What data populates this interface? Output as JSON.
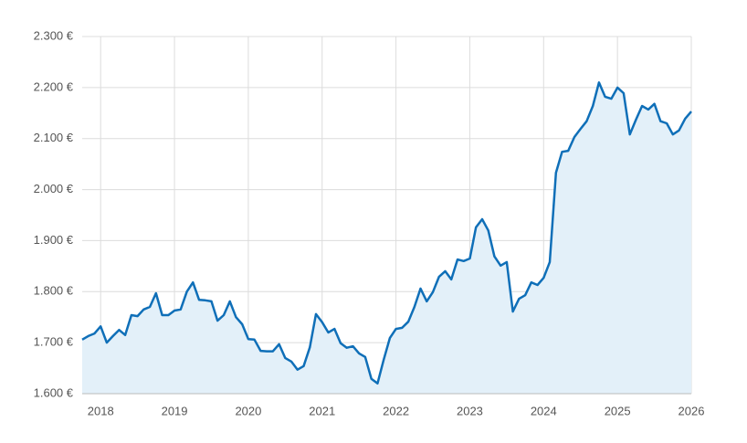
{
  "chart_data": {
    "type": "area",
    "x": [
      2017.75,
      2017.833,
      2017.917,
      2018,
      2018.083,
      2018.167,
      2018.25,
      2018.333,
      2018.417,
      2018.5,
      2018.583,
      2018.667,
      2018.75,
      2018.833,
      2018.917,
      2019,
      2019.083,
      2019.167,
      2019.25,
      2019.333,
      2019.417,
      2019.5,
      2019.583,
      2019.667,
      2019.75,
      2019.833,
      2019.917,
      2020,
      2020.083,
      2020.167,
      2020.25,
      2020.333,
      2020.417,
      2020.5,
      2020.583,
      2020.667,
      2020.75,
      2020.833,
      2020.917,
      2021,
      2021.083,
      2021.167,
      2021.25,
      2021.333,
      2021.417,
      2021.5,
      2021.583,
      2021.667,
      2021.75,
      2021.833,
      2021.917,
      2022,
      2022.083,
      2022.167,
      2022.25,
      2022.333,
      2022.417,
      2022.5,
      2022.583,
      2022.667,
      2022.75,
      2022.833,
      2022.917,
      2023,
      2023.083,
      2023.167,
      2023.25,
      2023.333,
      2023.417,
      2023.5,
      2023.583,
      2023.667,
      2023.75,
      2023.833,
      2023.917,
      2024,
      2024.083,
      2024.167,
      2024.25,
      2024.333,
      2024.417,
      2024.5,
      2024.583,
      2024.667,
      2024.75,
      2024.833,
      2024.917,
      2025,
      2025.083,
      2025.167,
      2025.25,
      2025.333,
      2025.417,
      2025.5,
      2025.583,
      2025.667,
      2025.75,
      2025.833,
      2025.917,
      2026
    ],
    "series": [
      {
        "color": "#0f6fb8",
        "values": [
          1706,
          1713,
          1718,
          1732,
          1700,
          1713,
          1725,
          1715,
          1754,
          1752,
          1765,
          1770,
          1797,
          1754,
          1754,
          1763,
          1765,
          1800,
          1818,
          1784,
          1783,
          1781,
          1743,
          1754,
          1781,
          1750,
          1736,
          1707,
          1706,
          1684,
          1683,
          1683,
          1697,
          1670,
          1663,
          1647,
          1654,
          1691,
          1756,
          1740,
          1720,
          1727,
          1699,
          1690,
          1693,
          1679,
          1672,
          1629,
          1620,
          1666,
          1709,
          1727,
          1729,
          1741,
          1770,
          1806,
          1781,
          1799,
          1829,
          1840,
          1824,
          1863,
          1860,
          1865,
          1926,
          1942,
          1920,
          1869,
          1851,
          1858,
          1761,
          1786,
          1793,
          1818,
          1813,
          1827,
          1858,
          2033,
          2074,
          2076,
          2103,
          2119,
          2134,
          2164,
          2210,
          2182,
          2178,
          2200,
          2189,
          2108,
          2137,
          2164,
          2157,
          2168,
          2134,
          2130,
          2108,
          2116,
          2139,
          2153
        ]
      }
    ],
    "xlim": [
      2017.75,
      2026
    ],
    "xticks": [
      2018,
      2019,
      2020,
      2021,
      2022,
      2023,
      2024,
      2025,
      2026
    ],
    "ylim": [
      1600,
      2300
    ],
    "yticks": [
      {
        "value": 1600,
        "label": "1.600 €"
      },
      {
        "value": 1700,
        "label": "1.700 €"
      },
      {
        "value": 1800,
        "label": "1.800 €"
      },
      {
        "value": 1900,
        "label": "1.900 €"
      },
      {
        "value": 2000,
        "label": "2.000 €"
      },
      {
        "value": 2100,
        "label": "2.100 €"
      },
      {
        "value": 2200,
        "label": "2.200 €"
      },
      {
        "value": 2300,
        "label": "2.300 €"
      }
    ],
    "grid": true,
    "fill_color": "#e3f0f9"
  }
}
